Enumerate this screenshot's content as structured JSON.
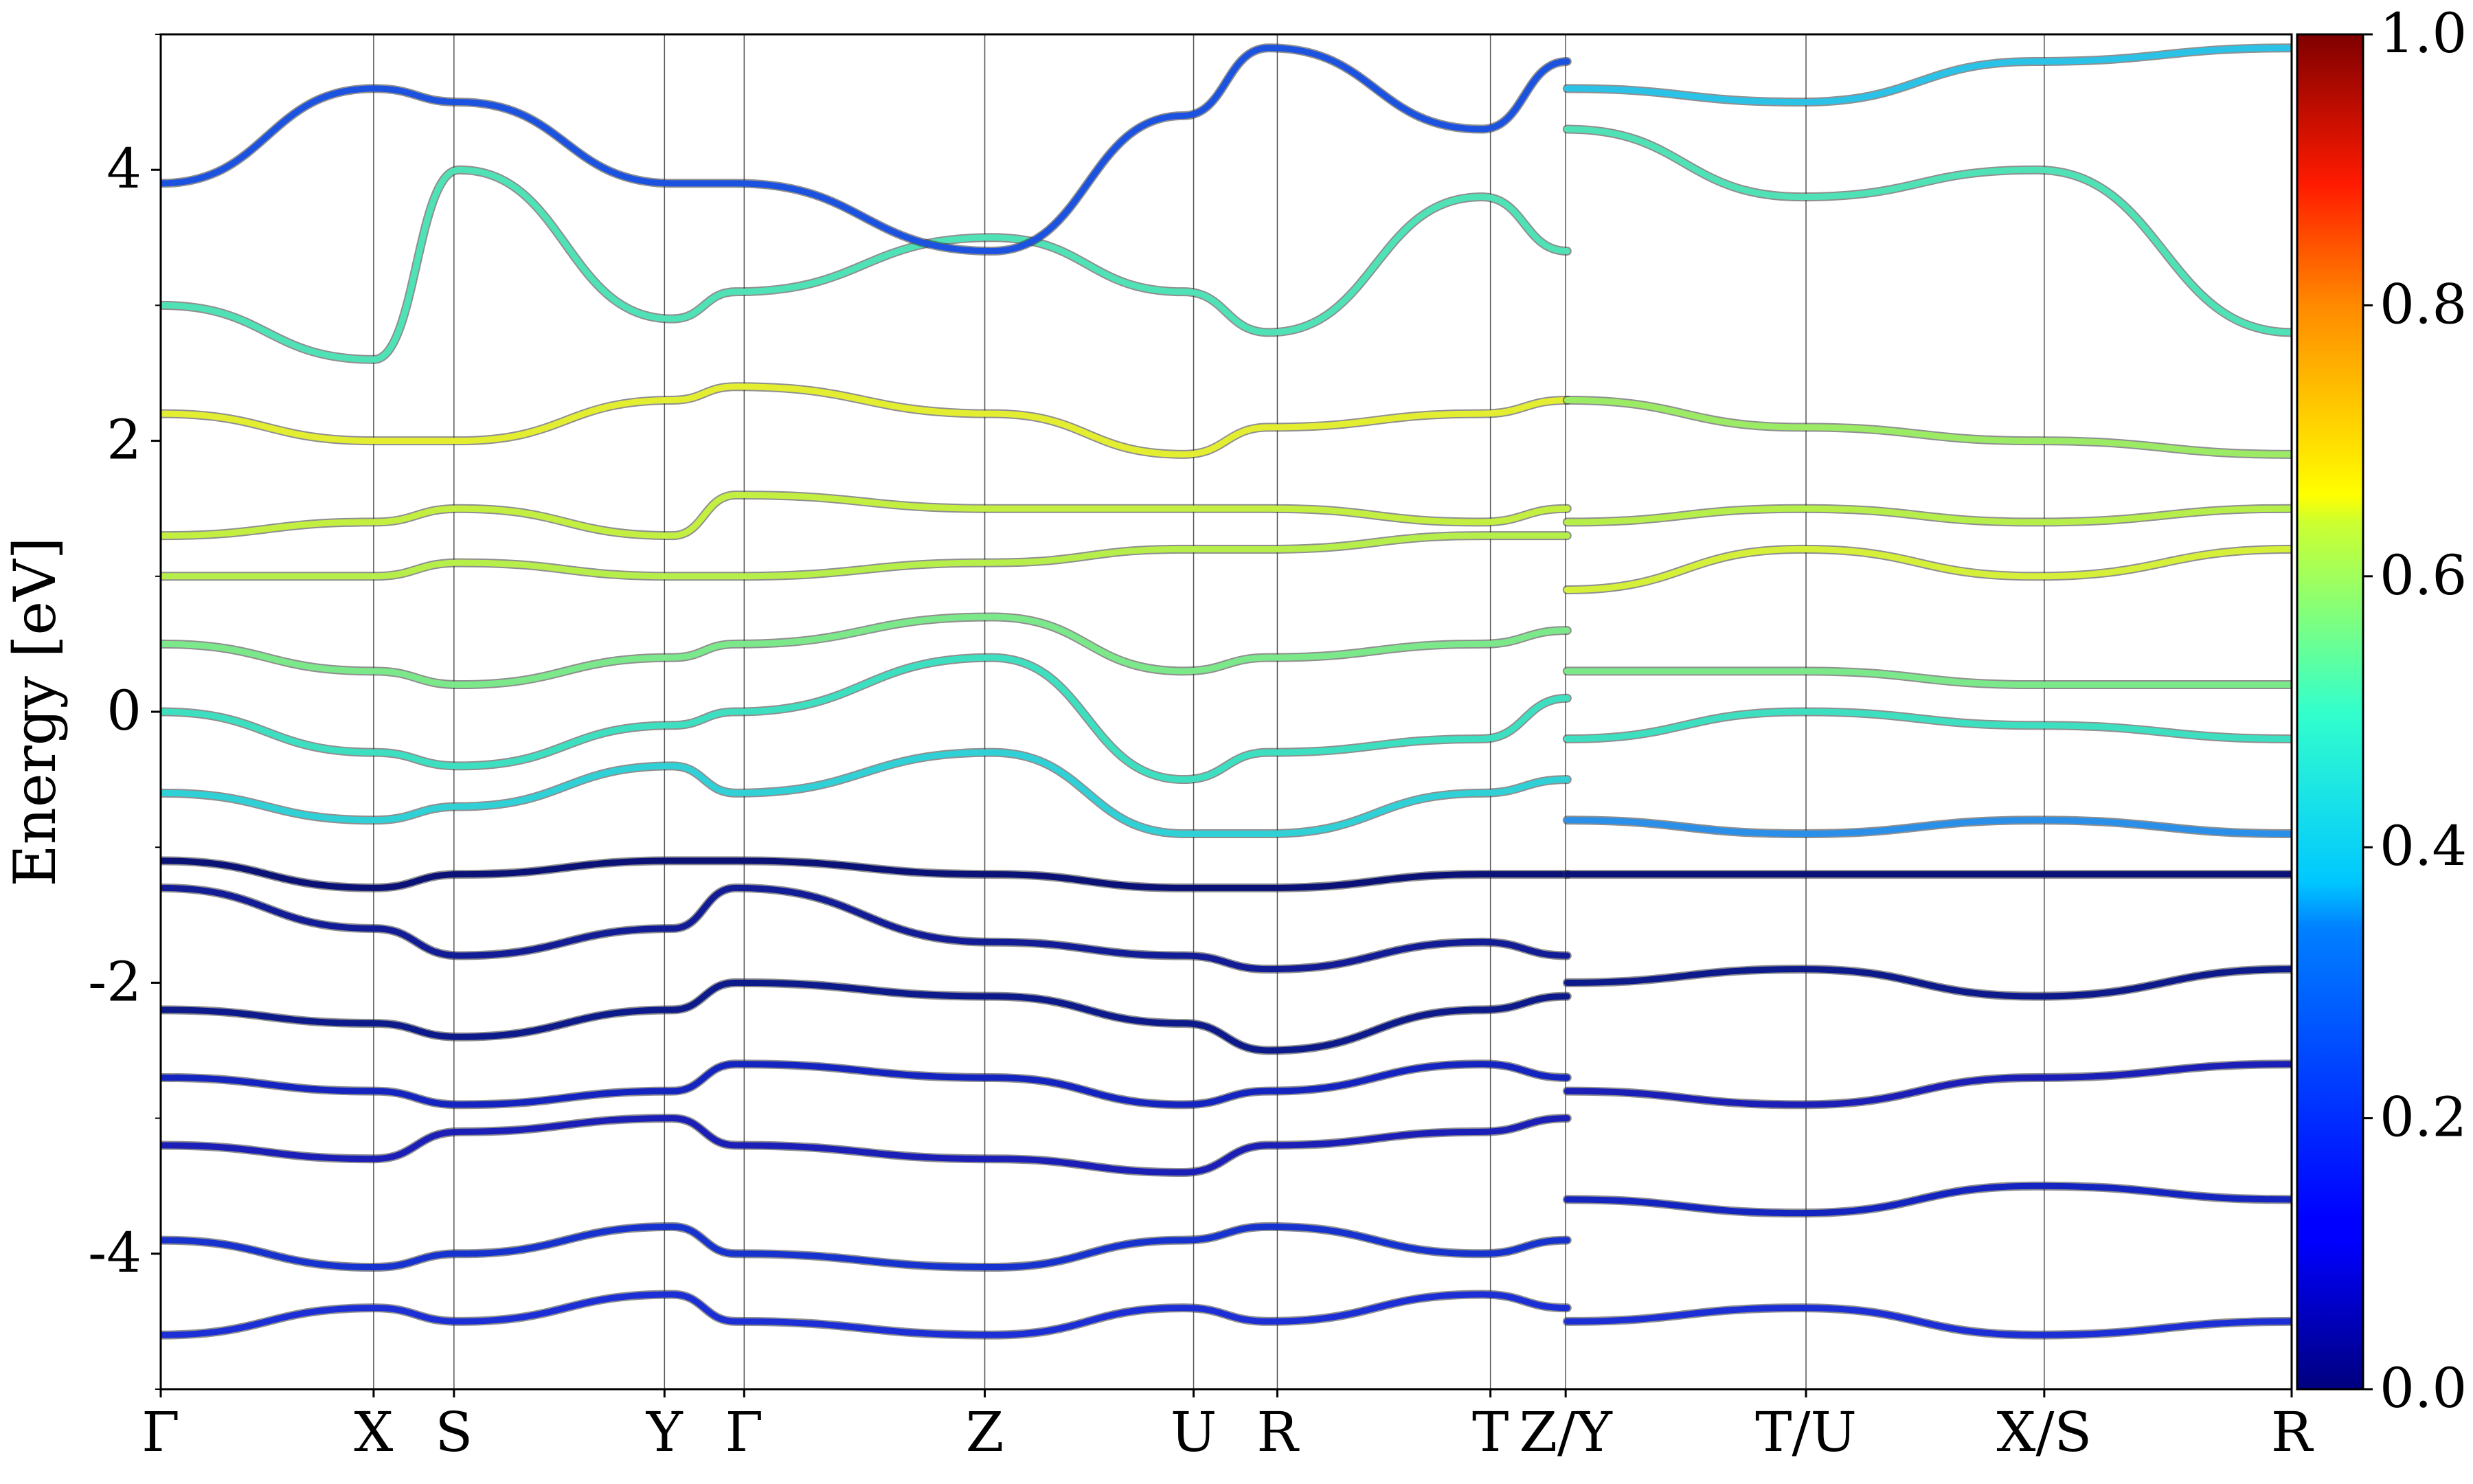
{
  "chart_data": {
    "type": "line",
    "title": "",
    "xlabel": "",
    "ylabel": "Energy [eV]",
    "ylim": [
      -5,
      5
    ],
    "yticks": [
      -4,
      -2,
      0,
      2,
      4
    ],
    "ytick_labels": [
      "-4",
      "-2",
      "0",
      "2",
      "4"
    ],
    "x_path_length": 1.0,
    "kpoints": [
      {
        "label": "Γ",
        "x": 0.0
      },
      {
        "label": "X",
        "x": 0.0999
      },
      {
        "label": "S",
        "x": 0.1376
      },
      {
        "label": "Y",
        "x": 0.2364
      },
      {
        "label": "Γ",
        "x": 0.2738
      },
      {
        "label": "Z",
        "x": 0.3867
      },
      {
        "label": "U",
        "x": 0.4847
      },
      {
        "label": "R",
        "x": 0.524
      },
      {
        "label": "T",
        "x": 0.624
      },
      {
        "label": "Z/Y",
        "x": 0.6593
      },
      {
        "label": "T/U",
        "x": 0.7721
      },
      {
        "label": "X/S",
        "x": 0.8839
      },
      {
        "label": "R",
        "x": 1.0
      }
    ],
    "colorbar": {
      "colormap": "jet",
      "range": [
        0.0,
        1.0
      ],
      "ticks": [
        "0.0",
        "0.2",
        "0.4",
        "0.6",
        "0.8",
        "1.0"
      ]
    },
    "grid": "vertical lines at high-symmetry k-points",
    "legend": "none",
    "series": [
      {
        "color": "#1c2fd6",
        "x": [
          0,
          0.1,
          0.14,
          0.24,
          0.27,
          0.39,
          0.48,
          0.52,
          0.62,
          0.66
        ],
        "y": [
          -4.6,
          -4.4,
          -4.5,
          -4.3,
          -4.5,
          -4.6,
          -4.4,
          -4.5,
          -4.3,
          -4.4
        ]
      },
      {
        "color": "#1633cf",
        "x": [
          0,
          0.1,
          0.14,
          0.24,
          0.27,
          0.39,
          0.48,
          0.52,
          0.62,
          0.66
        ],
        "y": [
          -3.9,
          -4.1,
          -4.0,
          -3.8,
          -4.0,
          -4.1,
          -3.9,
          -3.8,
          -4.0,
          -3.9
        ]
      },
      {
        "color": "#1b1fb8",
        "x": [
          0,
          0.1,
          0.14,
          0.24,
          0.27,
          0.39,
          0.48,
          0.52,
          0.62,
          0.66
        ],
        "y": [
          -3.2,
          -3.3,
          -3.1,
          -3.0,
          -3.2,
          -3.3,
          -3.4,
          -3.2,
          -3.1,
          -3.0
        ]
      },
      {
        "color": "#1424c0",
        "x": [
          0,
          0.1,
          0.14,
          0.24,
          0.27,
          0.39,
          0.48,
          0.52,
          0.62,
          0.66
        ],
        "y": [
          -2.7,
          -2.8,
          -2.9,
          -2.8,
          -2.6,
          -2.7,
          -2.9,
          -2.8,
          -2.6,
          -2.7
        ]
      },
      {
        "color": "#0d1a8c",
        "x": [
          0,
          0.1,
          0.14,
          0.24,
          0.27,
          0.39,
          0.48,
          0.52,
          0.62,
          0.66
        ],
        "y": [
          -2.2,
          -2.3,
          -2.4,
          -2.2,
          -2.0,
          -2.1,
          -2.3,
          -2.5,
          -2.2,
          -2.1
        ]
      },
      {
        "color": "#121c96",
        "x": [
          0,
          0.1,
          0.14,
          0.24,
          0.27,
          0.39,
          0.48,
          0.52,
          0.62,
          0.66
        ],
        "y": [
          -1.3,
          -1.6,
          -1.8,
          -1.6,
          -1.3,
          -1.7,
          -1.8,
          -1.9,
          -1.7,
          -1.8
        ]
      },
      {
        "color": "#0a1278",
        "x": [
          0,
          0.1,
          0.14,
          0.24,
          0.27,
          0.39,
          0.48,
          0.52,
          0.62,
          0.66
        ],
        "y": [
          -1.1,
          -1.3,
          -1.2,
          -1.1,
          -1.1,
          -1.2,
          -1.3,
          -1.3,
          -1.2,
          -1.2
        ]
      },
      {
        "color": "#2fd1d6",
        "x": [
          0,
          0.1,
          0.14,
          0.24,
          0.27,
          0.39,
          0.48,
          0.52,
          0.62,
          0.66
        ],
        "y": [
          -0.6,
          -0.8,
          -0.7,
          -0.4,
          -0.6,
          -0.3,
          -0.9,
          -0.9,
          -0.6,
          -0.5
        ]
      },
      {
        "color": "#3ce0c0",
        "x": [
          0,
          0.1,
          0.14,
          0.24,
          0.27,
          0.39,
          0.48,
          0.52,
          0.62,
          0.66
        ],
        "y": [
          0.0,
          -0.3,
          -0.4,
          -0.1,
          0.0,
          0.4,
          -0.5,
          -0.3,
          -0.2,
          0.1
        ]
      },
      {
        "color": "#7be88a",
        "x": [
          0,
          0.1,
          0.14,
          0.24,
          0.27,
          0.39,
          0.48,
          0.52,
          0.62,
          0.66
        ],
        "y": [
          0.5,
          0.3,
          0.2,
          0.4,
          0.5,
          0.7,
          0.3,
          0.4,
          0.5,
          0.6
        ]
      },
      {
        "color": "#b6ee4a",
        "x": [
          0,
          0.1,
          0.14,
          0.24,
          0.27,
          0.39,
          0.48,
          0.52,
          0.62,
          0.66
        ],
        "y": [
          1.0,
          1.0,
          1.1,
          1.0,
          1.0,
          1.1,
          1.2,
          1.2,
          1.3,
          1.3
        ]
      },
      {
        "color": "#c3ef40",
        "x": [
          0,
          0.1,
          0.14,
          0.24,
          0.27,
          0.39,
          0.48,
          0.52,
          0.62,
          0.66
        ],
        "y": [
          1.3,
          1.4,
          1.5,
          1.3,
          1.6,
          1.5,
          1.5,
          1.5,
          1.4,
          1.5
        ]
      },
      {
        "color": "#e4ee30",
        "x": [
          0,
          0.1,
          0.14,
          0.24,
          0.27,
          0.39,
          0.48,
          0.52,
          0.62,
          0.66
        ],
        "y": [
          2.2,
          2.0,
          2.0,
          2.3,
          2.4,
          2.2,
          1.9,
          2.1,
          2.2,
          2.3
        ]
      },
      {
        "color": "#4fe2b6",
        "x": [
          0,
          0.1,
          0.14,
          0.24,
          0.27,
          0.39,
          0.48,
          0.52,
          0.62,
          0.66
        ],
        "y": [
          3.0,
          2.6,
          4.0,
          2.9,
          3.1,
          3.5,
          3.1,
          2.8,
          3.8,
          3.4
        ]
      },
      {
        "color": "#1c52e0",
        "x": [
          0,
          0.1,
          0.14,
          0.24,
          0.27,
          0.39,
          0.48,
          0.52,
          0.62,
          0.66
        ],
        "y": [
          3.9,
          4.6,
          4.5,
          3.9,
          3.9,
          3.4,
          4.4,
          4.9,
          4.3,
          4.8
        ]
      },
      {
        "color": "#1c2fd6",
        "x": [
          0.66,
          0.77,
          0.88,
          1.0
        ],
        "y": [
          -4.5,
          -4.4,
          -4.6,
          -4.5
        ]
      },
      {
        "color": "#1424c0",
        "x": [
          0.66,
          0.77,
          0.88,
          1.0
        ],
        "y": [
          -3.6,
          -3.7,
          -3.5,
          -3.6
        ]
      },
      {
        "color": "#1b1fb8",
        "x": [
          0.66,
          0.77,
          0.88,
          1.0
        ],
        "y": [
          -2.8,
          -2.9,
          -2.7,
          -2.6
        ]
      },
      {
        "color": "#0d1a8c",
        "x": [
          0.66,
          0.77,
          0.88,
          1.0
        ],
        "y": [
          -2.0,
          -1.9,
          -2.1,
          -1.9
        ]
      },
      {
        "color": "#0a1278",
        "x": [
          0.66,
          0.77,
          0.88,
          1.0
        ],
        "y": [
          -1.2,
          -1.2,
          -1.2,
          -1.2
        ]
      },
      {
        "color": "#2a8fe8",
        "x": [
          0.66,
          0.77,
          0.88,
          1.0
        ],
        "y": [
          -0.8,
          -0.9,
          -0.8,
          -0.9
        ]
      },
      {
        "color": "#3ce0c0",
        "x": [
          0.66,
          0.77,
          0.88,
          1.0
        ],
        "y": [
          -0.2,
          0.0,
          -0.1,
          -0.2
        ]
      },
      {
        "color": "#7be88a",
        "x": [
          0.66,
          0.77,
          0.88,
          1.0
        ],
        "y": [
          0.3,
          0.3,
          0.2,
          0.2
        ]
      },
      {
        "color": "#d6f03a",
        "x": [
          0.66,
          0.77,
          0.88,
          1.0
        ],
        "y": [
          0.9,
          1.2,
          1.0,
          1.2
        ]
      },
      {
        "color": "#b6ee4a",
        "x": [
          0.66,
          0.77,
          0.88,
          1.0
        ],
        "y": [
          1.4,
          1.5,
          1.4,
          1.5
        ]
      },
      {
        "color": "#9beb64",
        "x": [
          0.66,
          0.77,
          0.88,
          1.0
        ],
        "y": [
          2.3,
          2.1,
          2.0,
          1.9
        ]
      },
      {
        "color": "#4fe2b6",
        "x": [
          0.66,
          0.77,
          0.88,
          1.0
        ],
        "y": [
          4.3,
          3.8,
          4.0,
          2.8
        ]
      },
      {
        "color": "#2bc2e8",
        "x": [
          0.66,
          0.77,
          0.88,
          1.0
        ],
        "y": [
          4.6,
          4.5,
          4.8,
          4.9
        ]
      }
    ]
  }
}
